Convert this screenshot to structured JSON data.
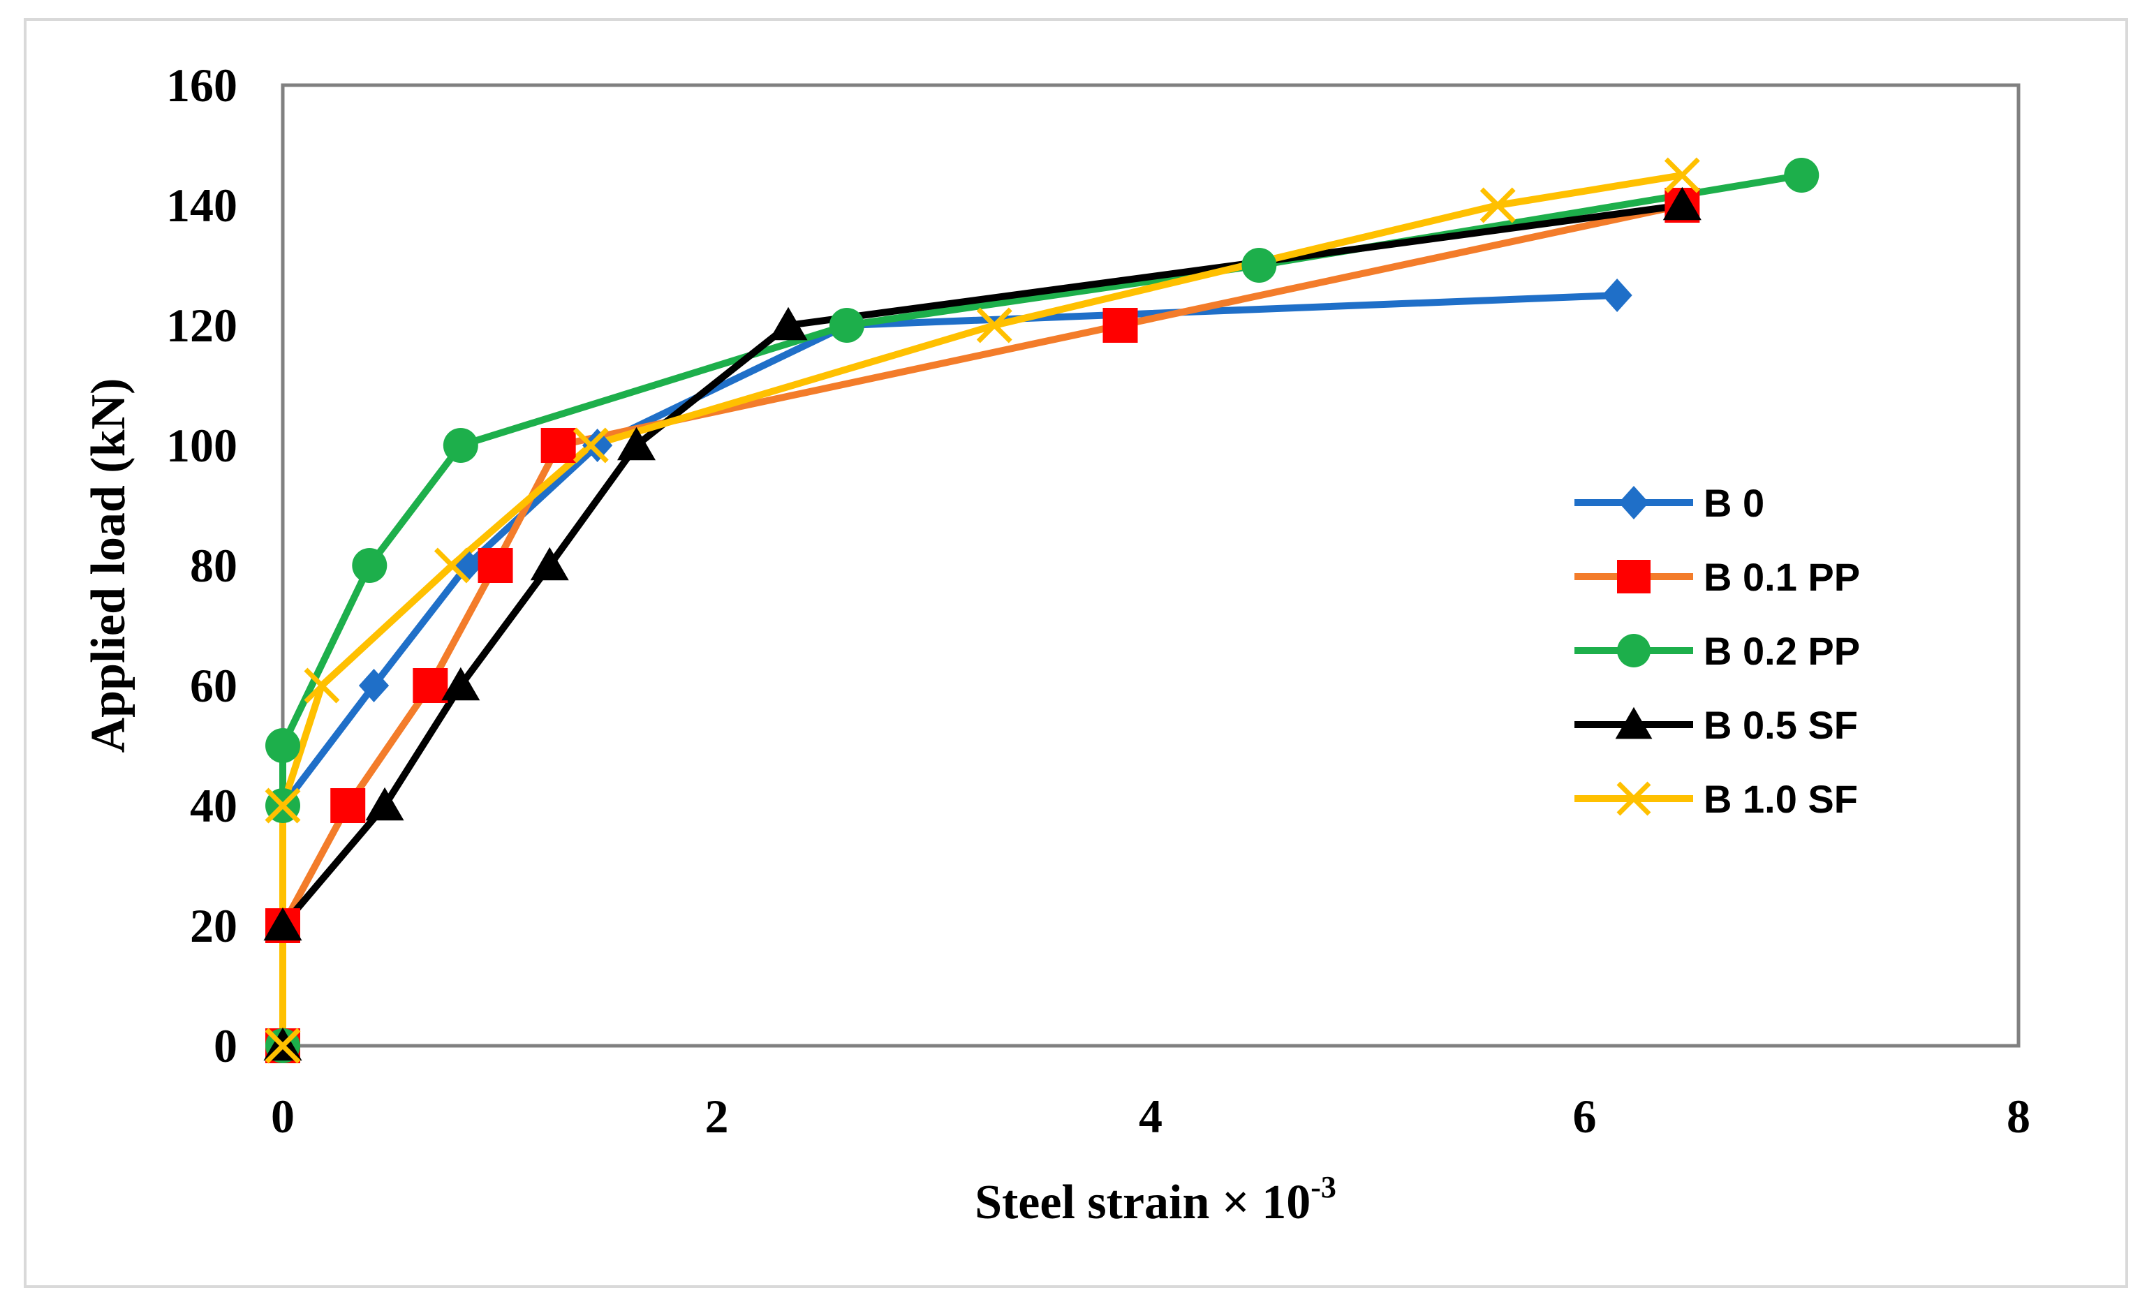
{
  "chart_data": {
    "type": "line",
    "title": "",
    "xlabel": "Steel strain × 10",
    "xlabel_exponent": "-3",
    "ylabel": "Applied load (kN)",
    "xlim": [
      0,
      8
    ],
    "ylim": [
      0,
      160
    ],
    "xticks": [
      0,
      2,
      4,
      6,
      8
    ],
    "yticks": [
      0,
      20,
      40,
      60,
      80,
      100,
      120,
      140,
      160
    ],
    "grid": false,
    "legend_position": "right",
    "series": [
      {
        "name": "B 0",
        "color": "#1F6FC8",
        "marker": "diamond",
        "points": [
          [
            0,
            0
          ],
          [
            0,
            40
          ],
          [
            0.42,
            60
          ],
          [
            0.85,
            80
          ],
          [
            1.45,
            100
          ],
          [
            2.6,
            120
          ],
          [
            6.15,
            125
          ]
        ]
      },
      {
        "name": "B 0.1 PP",
        "color": "#F37C2A",
        "marker_color": "#FF0000",
        "marker": "square",
        "points": [
          [
            0,
            0
          ],
          [
            0,
            20
          ],
          [
            0.3,
            40
          ],
          [
            0.68,
            60
          ],
          [
            0.98,
            80
          ],
          [
            1.27,
            100
          ],
          [
            3.86,
            120
          ],
          [
            6.45,
            140
          ]
        ]
      },
      {
        "name": "B 0.2 PP",
        "color": "#1DAF4B",
        "marker": "circle",
        "points": [
          [
            0,
            0
          ],
          [
            0,
            40
          ],
          [
            0,
            50
          ],
          [
            0.4,
            80
          ],
          [
            0.82,
            100
          ],
          [
            2.6,
            120
          ],
          [
            4.5,
            130
          ],
          [
            7.0,
            145
          ]
        ]
      },
      {
        "name": "B 0.5 SF",
        "color": "#000000",
        "marker": "triangle",
        "points": [
          [
            0,
            0
          ],
          [
            0,
            20
          ],
          [
            0.47,
            40
          ],
          [
            0.82,
            60
          ],
          [
            1.23,
            80
          ],
          [
            1.63,
            100
          ],
          [
            2.33,
            120
          ],
          [
            6.45,
            140
          ]
        ]
      },
      {
        "name": "B 1.0 SF",
        "color": "#FFC000",
        "marker": "x",
        "points": [
          [
            0,
            0
          ],
          [
            0,
            40
          ],
          [
            0.18,
            60
          ],
          [
            0.78,
            80
          ],
          [
            1.42,
            100
          ],
          [
            3.28,
            120
          ],
          [
            5.6,
            140
          ],
          [
            6.45,
            145
          ]
        ]
      }
    ]
  }
}
